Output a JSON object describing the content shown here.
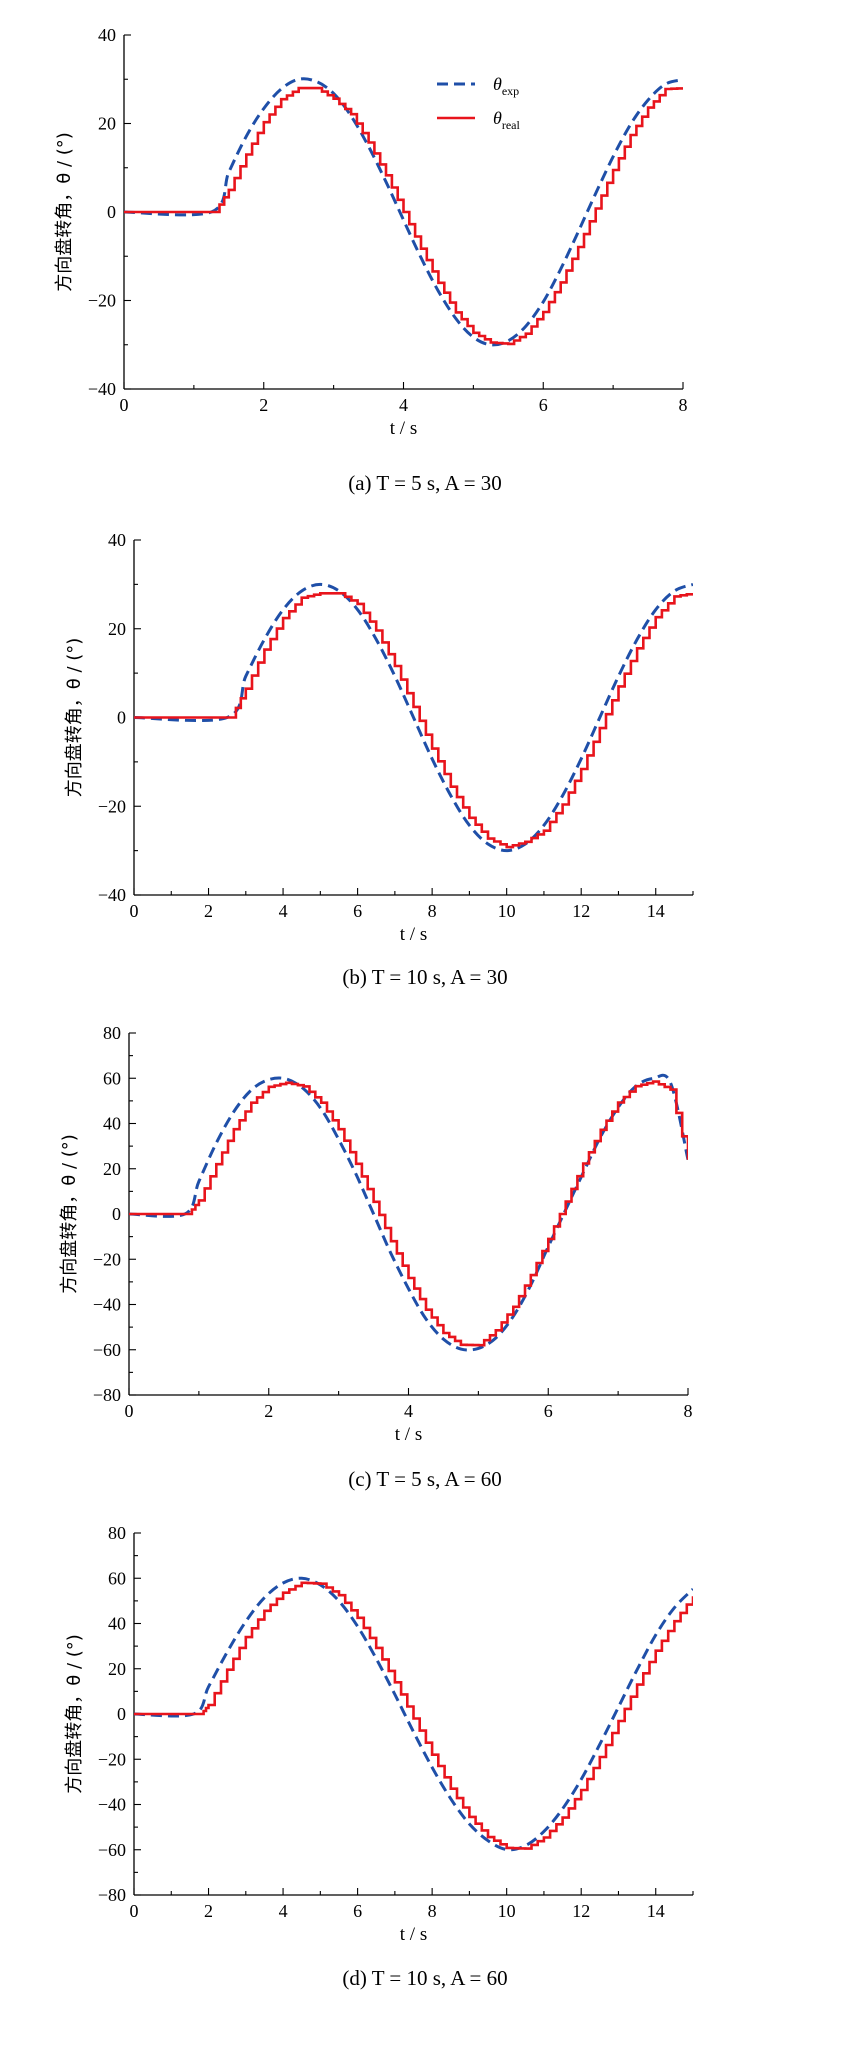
{
  "legend": {
    "exp": {
      "symbol": "θ",
      "sub": "exp",
      "color": "#1f4fa8"
    },
    "real": {
      "symbol": "θ",
      "sub": "real",
      "color": "#e8141c"
    }
  },
  "chart_data": [
    {
      "type": "line",
      "caption": "(a)  T = 5 s,  A = 30",
      "xlabel": "t / s",
      "ylabel": "方向盘转角，θ / (°)",
      "xlim": [
        0,
        8
      ],
      "ylim": [
        -40,
        40
      ],
      "xticks": [
        0,
        2,
        4,
        6,
        8
      ],
      "yticks": [
        -40,
        -20,
        0,
        20,
        40
      ],
      "legend_position": "top-center",
      "series": [
        {
          "name": "θexp",
          "style": "dashed",
          "color": "#1f4fa8",
          "points": [
            [
              0,
              0
            ],
            [
              1.25,
              0
            ],
            [
              1.5,
              9.0
            ],
            [
              1.75,
              17.1
            ],
            [
              2.0,
              23.4
            ],
            [
              2.25,
              27.8
            ],
            [
              2.5,
              30.0
            ],
            [
              2.75,
              29.5
            ],
            [
              3.0,
              26.8
            ],
            [
              3.25,
              21.7
            ],
            [
              3.5,
              14.8
            ],
            [
              3.75,
              6.8
            ],
            [
              4.0,
              -1.8
            ],
            [
              4.25,
              -10.3
            ],
            [
              4.5,
              -17.9
            ],
            [
              4.75,
              -24.1
            ],
            [
              5.0,
              -28.3
            ],
            [
              5.25,
              -30.0
            ],
            [
              5.5,
              -29.1
            ],
            [
              5.75,
              -25.8
            ],
            [
              6.0,
              -20.3
            ],
            [
              6.25,
              -12.9
            ],
            [
              6.5,
              -4.5
            ],
            [
              6.75,
              4.2
            ],
            [
              7.0,
              12.5
            ],
            [
              7.25,
              19.8
            ],
            [
              7.5,
              25.3
            ],
            [
              7.75,
              28.9
            ],
            [
              8.0,
              29.9
            ]
          ]
        },
        {
          "name": "θreal",
          "style": "solid-stepped",
          "color": "#e8141c",
          "points": [
            [
              0,
              0
            ],
            [
              1.3,
              0
            ],
            [
              1.5,
              5.0
            ],
            [
              1.75,
              13.0
            ],
            [
              2.0,
              20.3
            ],
            [
              2.25,
              25.5
            ],
            [
              2.5,
              28.0
            ],
            [
              2.75,
              28.0
            ],
            [
              3.0,
              25.6
            ],
            [
              3.25,
              22.1
            ],
            [
              3.5,
              15.7
            ],
            [
              3.75,
              8.3
            ],
            [
              4.0,
              0.0
            ],
            [
              4.25,
              -8.3
            ],
            [
              4.5,
              -16.0
            ],
            [
              4.75,
              -22.7
            ],
            [
              5.0,
              -27.3
            ],
            [
              5.25,
              -29.5
            ],
            [
              5.5,
              -29.8
            ],
            [
              5.75,
              -27.5
            ],
            [
              6.0,
              -22.6
            ],
            [
              6.25,
              -15.9
            ],
            [
              6.5,
              -7.9
            ],
            [
              6.75,
              0.8
            ],
            [
              7.0,
              9.5
            ],
            [
              7.25,
              17.4
            ],
            [
              7.5,
              23.6
            ],
            [
              7.75,
              27.8
            ],
            [
              8.0,
              28.0
            ]
          ]
        }
      ]
    },
    {
      "type": "line",
      "caption": "(b)  T = 10 s,  A = 30",
      "xlabel": "t / s",
      "ylabel": "方向盘转角，θ / (°)",
      "xlim": [
        0,
        15
      ],
      "ylim": [
        -40,
        40
      ],
      "xticks": [
        0,
        2,
        4,
        6,
        8,
        10,
        12,
        14
      ],
      "yticks": [
        -40,
        -20,
        0,
        20,
        40
      ],
      "series": [
        {
          "name": "θexp",
          "style": "dashed",
          "color": "#1f4fa8",
          "points": [
            [
              0,
              0
            ],
            [
              2.5,
              0
            ],
            [
              3.0,
              9.3
            ],
            [
              3.5,
              17.6
            ],
            [
              4.0,
              24.3
            ],
            [
              4.5,
              28.5
            ],
            [
              5.0,
              30.0
            ],
            [
              5.5,
              28.5
            ],
            [
              6.0,
              24.3
            ],
            [
              6.5,
              17.6
            ],
            [
              7.0,
              9.3
            ],
            [
              7.5,
              0.0
            ],
            [
              8.0,
              -9.3
            ],
            [
              8.5,
              -17.6
            ],
            [
              9.0,
              -24.3
            ],
            [
              9.5,
              -28.5
            ],
            [
              10.0,
              -30.0
            ],
            [
              10.5,
              -28.5
            ],
            [
              11.0,
              -24.3
            ],
            [
              11.5,
              -17.6
            ],
            [
              12.0,
              -9.3
            ],
            [
              12.5,
              0.0
            ],
            [
              13.0,
              9.3
            ],
            [
              13.5,
              17.6
            ],
            [
              14.0,
              24.3
            ],
            [
              14.5,
              28.5
            ],
            [
              15.0,
              30.0
            ]
          ]
        },
        {
          "name": "θreal",
          "style": "solid-stepped",
          "color": "#e8141c",
          "points": [
            [
              0,
              0
            ],
            [
              2.6,
              0
            ],
            [
              3.0,
              6.5
            ],
            [
              3.5,
              15.3
            ],
            [
              4.0,
              22.4
            ],
            [
              4.5,
              27.0
            ],
            [
              5.0,
              28.0
            ],
            [
              5.5,
              28.0
            ],
            [
              6.0,
              25.6
            ],
            [
              6.5,
              19.6
            ],
            [
              7.0,
              11.6
            ],
            [
              7.5,
              2.4
            ],
            [
              8.0,
              -7.0
            ],
            [
              8.5,
              -15.6
            ],
            [
              9.0,
              -22.6
            ],
            [
              9.5,
              -27.3
            ],
            [
              10.0,
              -29.2
            ],
            [
              10.5,
              -28.0
            ],
            [
              11.0,
              -25.5
            ],
            [
              11.5,
              -19.6
            ],
            [
              12.0,
              -11.6
            ],
            [
              12.5,
              -2.4
            ],
            [
              13.0,
              7.0
            ],
            [
              13.5,
              15.6
            ],
            [
              14.0,
              22.6
            ],
            [
              14.5,
              27.3
            ],
            [
              15.0,
              28.0
            ]
          ]
        }
      ]
    },
    {
      "type": "line",
      "caption": "(c)  T = 5 s,  A = 60",
      "xlabel": "t / s",
      "ylabel": "方向盘转角，θ / (°)",
      "xlim": [
        0,
        8
      ],
      "ylim": [
        -80,
        80
      ],
      "xticks": [
        0,
        2,
        4,
        6,
        8
      ],
      "yticks": [
        -80,
        -60,
        -40,
        -20,
        0,
        20,
        40,
        60,
        80
      ],
      "series": [
        {
          "name": "θexp",
          "style": "dashed",
          "color": "#1f4fa8",
          "points": [
            [
              0,
              0
            ],
            [
              0.8,
              0
            ],
            [
              1.0,
              14.4
            ],
            [
              1.25,
              31.4
            ],
            [
              1.5,
              45.2
            ],
            [
              1.75,
              54.8
            ],
            [
              2.0,
              59.4
            ],
            [
              2.25,
              59.7
            ],
            [
              2.5,
              55.3
            ],
            [
              2.75,
              46.4
            ],
            [
              3.0,
              33.0
            ],
            [
              3.25,
              17.5
            ],
            [
              3.5,
              0.0
            ],
            [
              3.75,
              -17.5
            ],
            [
              4.0,
              -33.0
            ],
            [
              4.25,
              -46.4
            ],
            [
              4.5,
              -55.3
            ],
            [
              4.75,
              -59.7
            ],
            [
              5.0,
              -59.4
            ],
            [
              5.25,
              -54.8
            ],
            [
              5.5,
              -45.2
            ],
            [
              5.75,
              -31.4
            ],
            [
              6.0,
              -14.4
            ],
            [
              6.25,
              1.9
            ],
            [
              6.5,
              18.2
            ],
            [
              6.75,
              34.2
            ],
            [
              7.0,
              47.1
            ],
            [
              7.25,
              56.4
            ],
            [
              7.5,
              59.9
            ],
            [
              7.75,
              58.0
            ],
            [
              8.0,
              24.0
            ]
          ]
        },
        {
          "name": "θreal",
          "style": "solid-stepped",
          "color": "#e8141c",
          "points": [
            [
              0,
              0
            ],
            [
              0.85,
              0
            ],
            [
              1.0,
              6.0
            ],
            [
              1.25,
              22.0
            ],
            [
              1.5,
              37.5
            ],
            [
              1.75,
              49.2
            ],
            [
              2.0,
              56.2
            ],
            [
              2.25,
              58.0
            ],
            [
              2.5,
              56.4
            ],
            [
              2.75,
              49.2
            ],
            [
              3.0,
              37.5
            ],
            [
              3.25,
              22.2
            ],
            [
              3.5,
              5.4
            ],
            [
              3.75,
              -12.0
            ],
            [
              4.0,
              -28.3
            ],
            [
              4.25,
              -42.3
            ],
            [
              4.5,
              -52.6
            ],
            [
              4.75,
              -57.8
            ],
            [
              5.0,
              -58.0
            ],
            [
              5.25,
              -51.4
            ],
            [
              5.5,
              -41.0
            ],
            [
              5.75,
              -27.0
            ],
            [
              6.0,
              -11.0
            ],
            [
              6.25,
              5.5
            ],
            [
              6.5,
              22.3
            ],
            [
              6.75,
              37.2
            ],
            [
              7.0,
              49.3
            ],
            [
              7.25,
              56.5
            ],
            [
              7.5,
              58.5
            ],
            [
              7.75,
              55.0
            ],
            [
              8.0,
              24.0
            ]
          ]
        }
      ]
    },
    {
      "type": "line",
      "caption": "(d)  T = 10 s,  A = 60",
      "xlabel": "t / s",
      "ylabel": "方向盘转角，θ / (°)",
      "xlim": [
        0,
        15
      ],
      "ylim": [
        -80,
        80
      ],
      "xticks": [
        0,
        2,
        4,
        6,
        8,
        10,
        12,
        14
      ],
      "yticks": [
        -80,
        -60,
        -40,
        -20,
        0,
        20,
        40,
        60,
        80
      ],
      "series": [
        {
          "name": "θexp",
          "style": "dashed",
          "color": "#1f4fa8",
          "points": [
            [
              0,
              0
            ],
            [
              1.6,
              0
            ],
            [
              2.0,
              12.0
            ],
            [
              2.5,
              27.4
            ],
            [
              3.0,
              40.9
            ],
            [
              3.5,
              51.4
            ],
            [
              4.0,
              57.9
            ],
            [
              4.5,
              60.0
            ],
            [
              5.0,
              57.1
            ],
            [
              5.5,
              49.9
            ],
            [
              6.0,
              38.7
            ],
            [
              6.5,
              24.5
            ],
            [
              7.0,
              8.6
            ],
            [
              7.5,
              -7.9
            ],
            [
              8.0,
              -23.6
            ],
            [
              8.5,
              -37.5
            ],
            [
              9.0,
              -48.6
            ],
            [
              9.5,
              -56.0
            ],
            [
              10.0,
              -59.9
            ],
            [
              10.5,
              -58.2
            ],
            [
              11.0,
              -51.9
            ],
            [
              11.5,
              -41.9
            ],
            [
              12.0,
              -28.9
            ],
            [
              12.5,
              -13.4
            ],
            [
              13.0,
              3.1
            ],
            [
              13.5,
              19.6
            ],
            [
              14.0,
              34.9
            ],
            [
              14.5,
              47.0
            ],
            [
              15.0,
              55.2
            ]
          ]
        },
        {
          "name": "θreal",
          "style": "solid-stepped",
          "color": "#e8141c",
          "points": [
            [
              0,
              0
            ],
            [
              1.8,
              0
            ],
            [
              2.0,
              4.0
            ],
            [
              2.5,
              19.6
            ],
            [
              3.0,
              34.0
            ],
            [
              3.5,
              45.6
            ],
            [
              4.0,
              53.6
            ],
            [
              4.5,
              58.0
            ],
            [
              5.0,
              57.6
            ],
            [
              5.5,
              52.5
            ],
            [
              6.0,
              42.5
            ],
            [
              6.5,
              29.2
            ],
            [
              7.0,
              14.0
            ],
            [
              7.5,
              -2.0
            ],
            [
              8.0,
              -18.0
            ],
            [
              8.5,
              -33.0
            ],
            [
              9.0,
              -45.5
            ],
            [
              9.5,
              -54.4
            ],
            [
              10.0,
              -59.2
            ],
            [
              10.5,
              -59.5
            ],
            [
              11.0,
              -54.6
            ],
            [
              11.5,
              -45.8
            ],
            [
              12.0,
              -33.6
            ],
            [
              12.5,
              -19.0
            ],
            [
              13.0,
              -3.1
            ],
            [
              13.5,
              13.0
            ],
            [
              14.0,
              28.0
            ],
            [
              14.5,
              41.0
            ],
            [
              15.0,
              52.0
            ]
          ]
        }
      ]
    }
  ]
}
